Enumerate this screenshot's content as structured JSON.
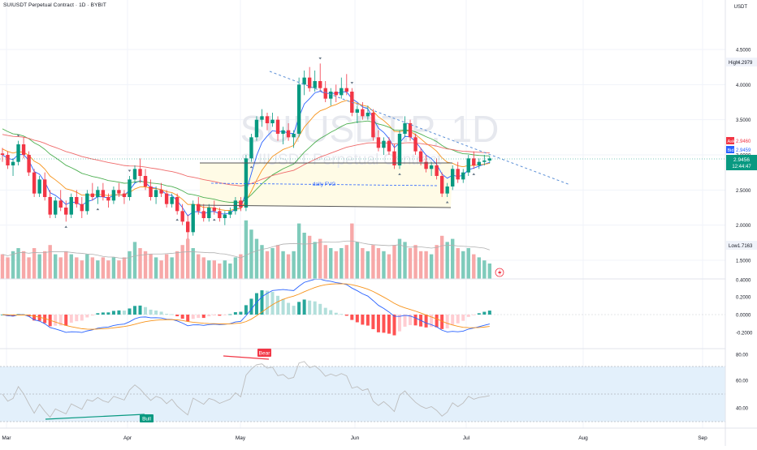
{
  "header": {
    "title": "SUIUSDT Perpetual Contract · 1D · BYBIT",
    "currency": "USDT"
  },
  "watermark": {
    "symbol": "SUIUSDT.P, 1D",
    "subtitle": "SUIUSDT Perpetual Contract"
  },
  "annotations": {
    "fvg_label": "daily FVG",
    "bear_label": "Bear",
    "bull_label": "Bull"
  },
  "price_axis": {
    "ticks": [
      "4.5000",
      "4.0000",
      "3.5000",
      "3.0000",
      "2.5000",
      "2.0000",
      "1.5000"
    ],
    "high": {
      "label": "High",
      "value": "4.2979"
    },
    "low": {
      "label": "Low",
      "value": "1.7163"
    },
    "ask": {
      "label": "Ask",
      "value": "2.9460",
      "color": "#f23645"
    },
    "bid": {
      "label": "Bid",
      "value": "2.9459",
      "color": "#2962ff"
    },
    "last": {
      "value": "2.9456",
      "countdown": "12:44:47",
      "color": "#089981"
    }
  },
  "macd_axis": {
    "ticks": [
      "0.4000",
      "0.2000",
      "0.0000",
      "-0.2000"
    ]
  },
  "rsi_axis": {
    "ticks": [
      "80.00",
      "60.00",
      "40.00"
    ]
  },
  "time_axis": {
    "labels": [
      "Mar",
      "Apr",
      "May",
      "Jun",
      "Jul",
      "Aug",
      "Sep"
    ]
  },
  "colors": {
    "up": "#089981",
    "down": "#f23645",
    "up_vol": "#7fcbbb",
    "down_vol": "#f7a8a8",
    "ema_fast": "#2962ff",
    "ema_mid": "#f7931a",
    "ema_slow": "#4caf50",
    "ema_long": "#ef6a6a",
    "fvg_fill": "#fffbe6",
    "rsi_band": "#e3f0fb",
    "rsi_line": "#bdbdbd",
    "trend": "#5b8fd6"
  },
  "chart_data": {
    "type": "candlestick",
    "x_range": [
      "2024-02-28",
      "2024-09-05"
    ],
    "y_range": [
      1.35,
      4.65
    ],
    "series_ohlc": [
      [
        3.02,
        3.1,
        2.9,
        3.0
      ],
      [
        3.0,
        3.05,
        2.8,
        2.85
      ],
      [
        2.85,
        2.95,
        2.7,
        2.9
      ],
      [
        2.9,
        3.2,
        2.85,
        3.15
      ],
      [
        3.15,
        3.25,
        2.95,
        3.0
      ],
      [
        3.0,
        3.05,
        2.7,
        2.75
      ],
      [
        2.75,
        2.8,
        2.4,
        2.45
      ],
      [
        2.45,
        2.7,
        2.4,
        2.65
      ],
      [
        2.65,
        2.75,
        2.35,
        2.4
      ],
      [
        2.4,
        2.5,
        2.1,
        2.15
      ],
      [
        2.15,
        2.4,
        2.1,
        2.35
      ],
      [
        2.35,
        2.5,
        2.2,
        2.25
      ],
      [
        2.25,
        2.35,
        2.05,
        2.15
      ],
      [
        2.15,
        2.45,
        2.1,
        2.4
      ],
      [
        2.4,
        2.5,
        2.25,
        2.3
      ],
      [
        2.3,
        2.4,
        2.1,
        2.2
      ],
      [
        2.2,
        2.5,
        2.15,
        2.45
      ],
      [
        2.45,
        2.6,
        2.35,
        2.4
      ],
      [
        2.4,
        2.55,
        2.3,
        2.5
      ],
      [
        2.5,
        2.6,
        2.35,
        2.4
      ],
      [
        2.4,
        2.45,
        2.25,
        2.35
      ],
      [
        2.35,
        2.55,
        2.3,
        2.5
      ],
      [
        2.5,
        2.6,
        2.4,
        2.45
      ],
      [
        2.45,
        2.5,
        2.3,
        2.4
      ],
      [
        2.4,
        2.7,
        2.35,
        2.65
      ],
      [
        2.65,
        2.85,
        2.6,
        2.8
      ],
      [
        2.8,
        2.95,
        2.6,
        2.7
      ],
      [
        2.7,
        2.8,
        2.5,
        2.55
      ],
      [
        2.55,
        2.65,
        2.35,
        2.4
      ],
      [
        2.4,
        2.55,
        2.3,
        2.5
      ],
      [
        2.5,
        2.6,
        2.4,
        2.45
      ],
      [
        2.45,
        2.5,
        2.25,
        2.3
      ],
      [
        2.3,
        2.45,
        2.25,
        2.4
      ],
      [
        2.4,
        2.45,
        2.15,
        2.2
      ],
      [
        2.2,
        2.3,
        2.0,
        2.05
      ],
      [
        2.05,
        2.15,
        1.8,
        1.9
      ],
      [
        1.9,
        2.35,
        1.85,
        2.3
      ],
      [
        2.3,
        2.4,
        2.15,
        2.2
      ],
      [
        2.2,
        2.3,
        2.05,
        2.1
      ],
      [
        2.1,
        2.3,
        2.05,
        2.25
      ],
      [
        2.25,
        2.35,
        2.15,
        2.2
      ],
      [
        2.2,
        2.25,
        2.05,
        2.1
      ],
      [
        2.1,
        2.2,
        2.0,
        2.15
      ],
      [
        2.15,
        2.25,
        2.1,
        2.2
      ],
      [
        2.2,
        2.4,
        2.15,
        2.35
      ],
      [
        2.35,
        2.4,
        2.2,
        2.25
      ],
      [
        2.25,
        3.0,
        2.2,
        2.95
      ],
      [
        2.95,
        3.3,
        2.9,
        3.25
      ],
      [
        3.25,
        3.55,
        3.2,
        3.5
      ],
      [
        3.5,
        3.65,
        3.4,
        3.55
      ],
      [
        3.55,
        3.6,
        3.35,
        3.45
      ],
      [
        3.45,
        3.6,
        3.4,
        3.5
      ],
      [
        3.5,
        3.55,
        3.2,
        3.3
      ],
      [
        3.3,
        3.4,
        3.15,
        3.35
      ],
      [
        3.35,
        3.45,
        3.2,
        3.25
      ],
      [
        3.25,
        3.35,
        3.1,
        3.3
      ],
      [
        3.3,
        4.1,
        3.25,
        4.0
      ],
      [
        4.0,
        4.2,
        3.85,
        4.1
      ],
      [
        4.1,
        4.25,
        3.9,
        3.95
      ],
      [
        3.95,
        4.2,
        3.9,
        4.05
      ],
      [
        4.05,
        4.3,
        3.9,
        3.95
      ],
      [
        3.95,
        4.05,
        3.75,
        3.8
      ],
      [
        3.8,
        3.95,
        3.7,
        3.9
      ],
      [
        3.9,
        4.0,
        3.75,
        3.85
      ],
      [
        3.85,
        4.1,
        3.8,
        3.95
      ],
      [
        3.95,
        4.15,
        3.85,
        3.9
      ],
      [
        3.9,
        3.95,
        3.55,
        3.6
      ],
      [
        3.6,
        3.7,
        3.45,
        3.65
      ],
      [
        3.65,
        3.75,
        3.5,
        3.55
      ],
      [
        3.55,
        3.7,
        3.5,
        3.6
      ],
      [
        3.6,
        3.65,
        3.2,
        3.25
      ],
      [
        3.25,
        3.35,
        3.05,
        3.1
      ],
      [
        3.1,
        3.25,
        3.0,
        3.2
      ],
      [
        3.2,
        3.25,
        3.0,
        3.05
      ],
      [
        3.05,
        3.15,
        2.8,
        2.85
      ],
      [
        2.85,
        3.35,
        2.8,
        3.3
      ],
      [
        3.3,
        3.55,
        3.25,
        3.45
      ],
      [
        3.45,
        3.5,
        3.2,
        3.25
      ],
      [
        3.25,
        3.3,
        3.0,
        3.05
      ],
      [
        3.05,
        3.1,
        2.85,
        2.9
      ],
      [
        2.9,
        3.0,
        2.75,
        2.8
      ],
      [
        2.8,
        2.9,
        2.7,
        2.85
      ],
      [
        2.85,
        2.95,
        2.65,
        2.7
      ],
      [
        2.7,
        2.75,
        2.4,
        2.45
      ],
      [
        2.45,
        2.6,
        2.4,
        2.55
      ],
      [
        2.55,
        2.85,
        2.5,
        2.8
      ],
      [
        2.8,
        2.9,
        2.6,
        2.65
      ],
      [
        2.65,
        2.8,
        2.6,
        2.75
      ],
      [
        2.75,
        3.0,
        2.7,
        2.95
      ],
      [
        2.95,
        3.05,
        2.8,
        2.85
      ],
      [
        2.85,
        2.95,
        2.8,
        2.9
      ],
      [
        2.9,
        3.0,
        2.85,
        2.92
      ],
      [
        2.92,
        2.98,
        2.88,
        2.95
      ]
    ],
    "volume": [
      0.8,
      0.7,
      0.9,
      1.0,
      0.9,
      0.7,
      1.0,
      0.8,
      0.9,
      1.1,
      0.8,
      0.7,
      0.9,
      0.8,
      0.7,
      0.6,
      0.8,
      0.7,
      0.6,
      0.7,
      0.6,
      0.7,
      0.6,
      0.7,
      0.9,
      1.2,
      1.0,
      0.9,
      0.8,
      0.7,
      0.6,
      0.8,
      0.7,
      0.9,
      1.1,
      1.3,
      1.0,
      0.8,
      0.7,
      0.6,
      0.6,
      0.5,
      0.6,
      0.5,
      0.7,
      0.8,
      1.9,
      1.6,
      1.3,
      1.1,
      0.9,
      1.0,
      1.1,
      0.9,
      0.8,
      0.9,
      1.8,
      1.5,
      1.4,
      1.2,
      1.3,
      1.1,
      1.0,
      0.9,
      1.0,
      1.1,
      1.8,
      1.2,
      1.0,
      0.9,
      1.1,
      1.0,
      0.9,
      0.8,
      1.1,
      1.3,
      1.2,
      1.0,
      1.1,
      0.9,
      0.9,
      0.8,
      1.1,
      1.4,
      1.2,
      1.3,
      1.0,
      0.9,
      1.0,
      0.8,
      0.7,
      0.6,
      0.5
    ]
  }
}
